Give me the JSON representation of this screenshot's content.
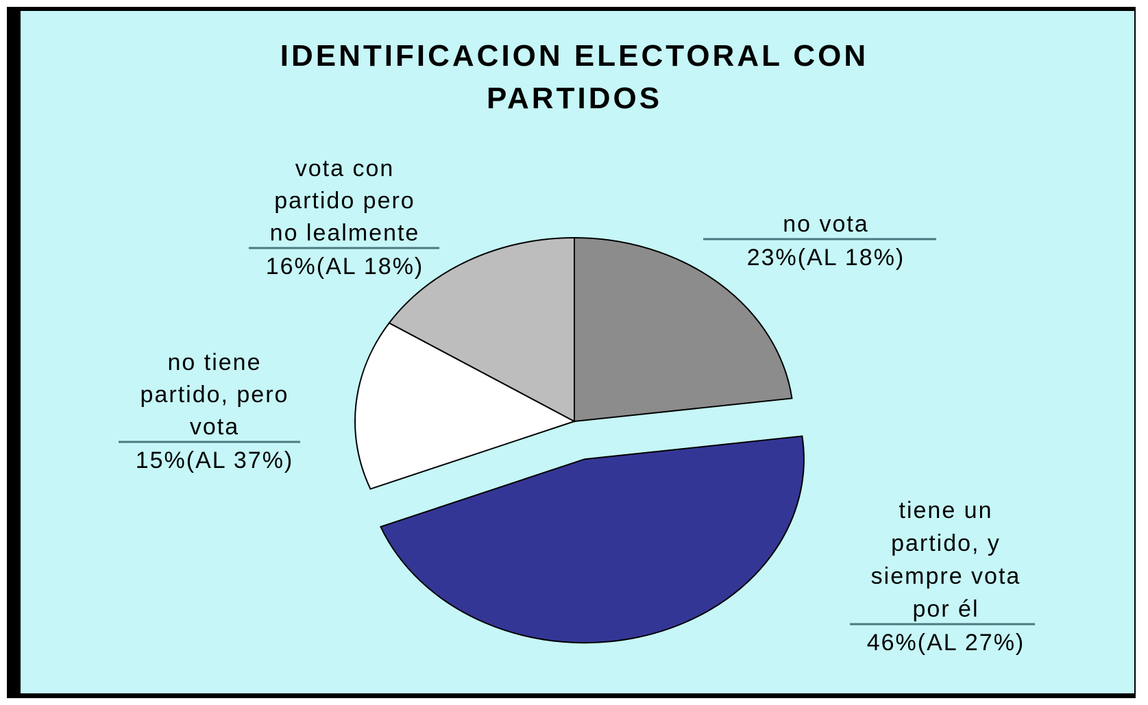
{
  "chart_data": {
    "type": "pie",
    "title": "IDENTIFICACION ELECTORAL CON PARTIDOS",
    "title_lines": [
      "IDENTIFICACION ELECTORAL CON",
      "PARTIDOS"
    ],
    "background_color": "#c6f6f7",
    "border_color": "#000000",
    "slices": [
      {
        "label_lines": [
          "no vota"
        ],
        "value_text": "23%(AL 18%)",
        "value": 23,
        "comparison_value": 18,
        "color": "#8c8c8c",
        "exploded": false
      },
      {
        "label_lines": [
          "tiene un",
          "partido, y",
          "siempre vota",
          "por él"
        ],
        "value_text": "46%(AL 27%)",
        "value": 46,
        "comparison_value": 27,
        "color": "#343696",
        "exploded": true
      },
      {
        "label_lines": [
          "no tiene",
          "partido, pero",
          "vota"
        ],
        "value_text": "15%(AL 37%)",
        "value": 15,
        "comparison_value": 37,
        "color": "#ffffff",
        "exploded": false
      },
      {
        "label_lines": [
          "vota con",
          "partido pero",
          "no lealmente"
        ],
        "value_text": "16%(AL 18%)",
        "value": 16,
        "comparison_value": 18,
        "color": "#bdbdbd",
        "exploded": false
      }
    ]
  }
}
